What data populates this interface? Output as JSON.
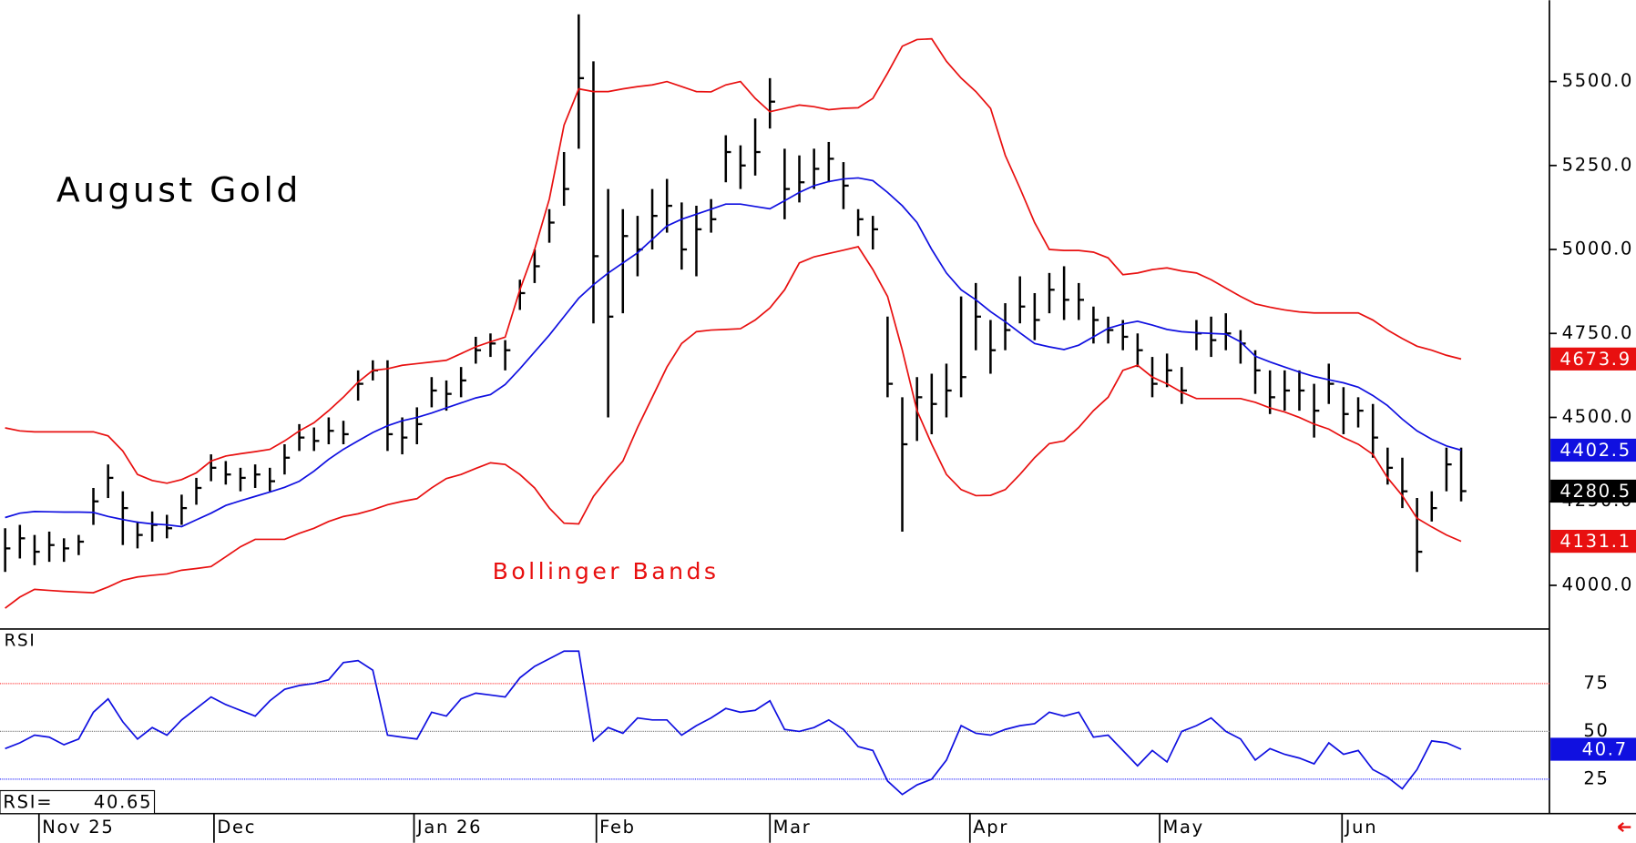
{
  "chart_data": [
    {
      "type": "ohlc",
      "title": "August Gold",
      "annotation": "Bollinger Bands",
      "xlim": [
        -0.35,
        105
      ],
      "xticks": [
        {
          "value": 2.3,
          "label": "Nov 25"
        },
        {
          "value": 14.2,
          "label": "Dec"
        },
        {
          "value": 27.8,
          "label": "Jan 26"
        },
        {
          "value": 40.2,
          "label": "Feb"
        },
        {
          "value": 52.0,
          "label": "Mar"
        },
        {
          "value": 65.6,
          "label": "Apr"
        },
        {
          "value": 78.5,
          "label": "May"
        },
        {
          "value": 90.9,
          "label": "Jun"
        }
      ],
      "ylim": [
        3870,
        5742
      ],
      "yticks": [
        {
          "value": 4000,
          "label": "4000.0"
        },
        {
          "value": 4250,
          "label": "4250.0"
        },
        {
          "value": 4500,
          "label": "4500.0"
        },
        {
          "value": 4750,
          "label": "4750.0"
        },
        {
          "value": 5000,
          "label": "5000.0"
        },
        {
          "value": 5250,
          "label": "5250.0"
        },
        {
          "value": 5500,
          "label": "5500.0"
        }
      ],
      "bars": {
        "color": "#000000",
        "high": [
          4170,
          4180,
          4150,
          4160,
          4140,
          4150,
          4290,
          4360,
          4280,
          4190,
          4220,
          4210,
          4270,
          4320,
          4390,
          4370,
          4350,
          4360,
          4350,
          4420,
          4480,
          4470,
          4500,
          4490,
          4640,
          4670,
          4670,
          4500,
          4530,
          4620,
          4610,
          4650,
          4740,
          4750,
          4730,
          4910,
          5000,
          5120,
          5290,
          5700,
          5560,
          5180,
          5120,
          5100,
          5180,
          5210,
          5140,
          5130,
          5150,
          5340,
          5310,
          5390,
          5510,
          5300,
          5280,
          5300,
          5320,
          5260,
          5120,
          5100,
          4800,
          4560,
          4620,
          4630,
          4660,
          4860,
          4900,
          4790,
          4840,
          4920,
          4870,
          4930,
          4950,
          4900,
          4830,
          4800,
          4790,
          4750,
          4680,
          4690,
          4650,
          4790,
          4800,
          4810,
          4760,
          4700,
          4640,
          4640,
          4640,
          4600,
          4660,
          4590,
          4560,
          4540,
          4410,
          4380,
          4260,
          4280,
          4410,
          4410
        ],
        "low": [
          4040,
          4080,
          4060,
          4070,
          4070,
          4090,
          4180,
          4260,
          4120,
          4110,
          4130,
          4140,
          4180,
          4240,
          4310,
          4300,
          4280,
          4290,
          4280,
          4330,
          4400,
          4400,
          4420,
          4420,
          4550,
          4610,
          4400,
          4390,
          4420,
          4530,
          4520,
          4560,
          4660,
          4680,
          4640,
          4820,
          4900,
          5020,
          5130,
          5300,
          4780,
          4500,
          4810,
          4920,
          5000,
          5050,
          4940,
          4920,
          5050,
          5200,
          5180,
          5220,
          5360,
          5090,
          5140,
          5180,
          5200,
          5120,
          5040,
          5000,
          4560,
          4160,
          4430,
          4450,
          4500,
          4560,
          4700,
          4630,
          4700,
          4780,
          4730,
          4810,
          4790,
          4790,
          4720,
          4720,
          4700,
          4650,
          4560,
          4590,
          4540,
          4700,
          4680,
          4700,
          4660,
          4570,
          4510,
          4520,
          4520,
          4440,
          4540,
          4450,
          4470,
          4380,
          4300,
          4230,
          4040,
          4190,
          4280,
          4250
        ],
        "close": [
          4110,
          4140,
          4100,
          4120,
          4110,
          4130,
          4250,
          4320,
          4230,
          4150,
          4180,
          4170,
          4230,
          4290,
          4350,
          4330,
          4320,
          4330,
          4310,
          4380,
          4440,
          4430,
          4460,
          4450,
          4600,
          4640,
          4450,
          4440,
          4480,
          4580,
          4570,
          4610,
          4700,
          4720,
          4700,
          4870,
          4950,
          5080,
          5180,
          5510,
          4980,
          4800,
          5040,
          5000,
          5100,
          5130,
          5000,
          5060,
          5090,
          5290,
          5250,
          5290,
          5440,
          5180,
          5200,
          5240,
          5270,
          5190,
          5090,
          5060,
          4600,
          4420,
          4560,
          4540,
          4580,
          4620,
          4800,
          4700,
          4760,
          4830,
          4790,
          4880,
          4850,
          4850,
          4790,
          4760,
          4740,
          4700,
          4600,
          4640,
          4580,
          4750,
          4730,
          4750,
          4720,
          4640,
          4560,
          4580,
          4580,
          4520,
          4600,
          4510,
          4520,
          4440,
          4350,
          4280,
          4100,
          4230,
          4360,
          4280.5
        ]
      },
      "bands": {
        "upper": {
          "color": "#e81010",
          "values": [
            4469,
            4460,
            4457,
            4457,
            4457,
            4457,
            4457,
            4445,
            4400,
            4330,
            4312,
            4304,
            4315,
            4335,
            4370,
            4385,
            4392,
            4398,
            4405,
            4430,
            4460,
            4484,
            4520,
            4560,
            4605,
            4640,
            4645,
            4655,
            4660,
            4665,
            4670,
            4690,
            4710,
            4725,
            4739,
            4880,
            5000,
            5150,
            5370,
            5478,
            5470,
            5470,
            5478,
            5485,
            5490,
            5500,
            5485,
            5470,
            5469,
            5490,
            5500,
            5450,
            5410,
            5420,
            5430,
            5425,
            5416,
            5420,
            5422,
            5450,
            5525,
            5605,
            5625,
            5627,
            5560,
            5510,
            5470,
            5420,
            5280,
            5183,
            5080,
            5000,
            4997,
            4997,
            4992,
            4975,
            4925,
            4930,
            4940,
            4945,
            4936,
            4930,
            4910,
            4885,
            4860,
            4838,
            4828,
            4820,
            4814,
            4811,
            4811,
            4811,
            4811,
            4790,
            4760,
            4735,
            4712,
            4700,
            4685,
            4673.9
          ]
        },
        "middle": {
          "color": "#1010e0",
          "values": [
            4202,
            4215,
            4220,
            4219,
            4218,
            4218,
            4217,
            4205,
            4196,
            4188,
            4183,
            4180,
            4175,
            4195,
            4215,
            4238,
            4252,
            4265,
            4278,
            4292,
            4310,
            4340,
            4375,
            4405,
            4430,
            4455,
            4475,
            4490,
            4500,
            4513,
            4528,
            4543,
            4558,
            4568,
            4598,
            4645,
            4695,
            4745,
            4800,
            4855,
            4895,
            4930,
            4960,
            4990,
            5030,
            5070,
            5090,
            5105,
            5120,
            5135,
            5135,
            5128,
            5121,
            5145,
            5170,
            5190,
            5202,
            5210,
            5213,
            5205,
            5170,
            5130,
            5080,
            5000,
            4930,
            4880,
            4850,
            4815,
            4785,
            4752,
            4720,
            4710,
            4702,
            4715,
            4740,
            4765,
            4778,
            4786,
            4775,
            4762,
            4755,
            4752,
            4750,
            4748,
            4725,
            4682,
            4665,
            4650,
            4635,
            4622,
            4612,
            4603,
            4590,
            4565,
            4535,
            4495,
            4460,
            4435,
            4415,
            4402.5
          ]
        },
        "lower": {
          "color": "#e81010",
          "values": [
            3932,
            3965,
            3988,
            3985,
            3982,
            3980,
            3978,
            3995,
            4015,
            4025,
            4030,
            4034,
            4045,
            4050,
            4056,
            4085,
            4115,
            4137,
            4137,
            4137,
            4155,
            4170,
            4190,
            4205,
            4213,
            4225,
            4240,
            4250,
            4258,
            4290,
            4318,
            4330,
            4348,
            4365,
            4360,
            4330,
            4290,
            4230,
            4185,
            4183,
            4265,
            4320,
            4370,
            4470,
            4560,
            4650,
            4720,
            4755,
            4760,
            4762,
            4764,
            4790,
            4826,
            4880,
            4960,
            4978,
            4988,
            4998,
            5008,
            4940,
            4860,
            4700,
            4520,
            4420,
            4330,
            4285,
            4267,
            4268,
            4285,
            4330,
            4380,
            4422,
            4430,
            4470,
            4520,
            4560,
            4640,
            4655,
            4620,
            4600,
            4575,
            4556,
            4556,
            4556,
            4556,
            4545,
            4528,
            4516,
            4500,
            4480,
            4465,
            4440,
            4420,
            4390,
            4320,
            4267,
            4200,
            4174,
            4150,
            4131.1
          ]
        }
      }
    },
    {
      "type": "line",
      "title": "RSI",
      "readout_label": "RSI=",
      "last_value_label": "40.7",
      "ylim": [
        7,
        103
      ],
      "yticks": [
        25,
        50,
        75
      ],
      "grid_colors": [
        "#3030ff",
        "#808080",
        "#ff4040"
      ],
      "series": [
        {
          "color": "#1010e0",
          "values": [
            41,
            44,
            48,
            47,
            43,
            46,
            60,
            67,
            55,
            46,
            52,
            48,
            56,
            62,
            68,
            64,
            61,
            58,
            66,
            72,
            74,
            75,
            77,
            86,
            87,
            82,
            48,
            47,
            46,
            60,
            58,
            67,
            70,
            69,
            68,
            78,
            84,
            88,
            92,
            92,
            45,
            52,
            49,
            57,
            56,
            56,
            48,
            53,
            57,
            62,
            60,
            61,
            66,
            51,
            50,
            52,
            56,
            51,
            42,
            40,
            24,
            17,
            22,
            25,
            35,
            53,
            49,
            48,
            51,
            53,
            54,
            60,
            58,
            60,
            47,
            48,
            40,
            32,
            40,
            34,
            50,
            53,
            57,
            50,
            46,
            35,
            41,
            38,
            36,
            33,
            44,
            38,
            40,
            30,
            26,
            20,
            30,
            45,
            44,
            40.65
          ]
        }
      ]
    }
  ]
}
